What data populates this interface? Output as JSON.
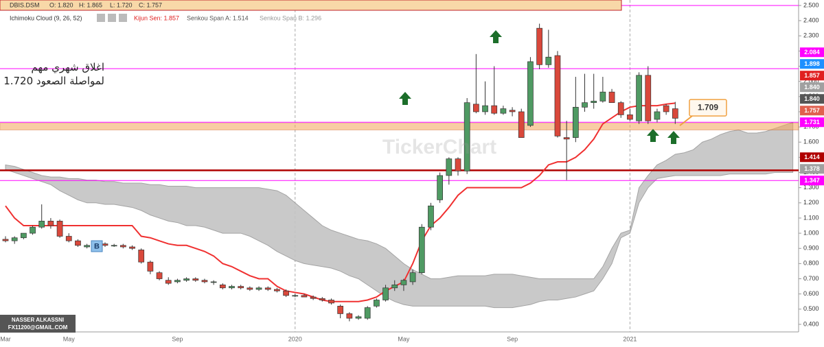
{
  "chart_data": {
    "type": "candlestick",
    "symbol": "DBIS.DSM",
    "ohlc_labels": [
      "O: 1.820",
      "H: 1.865",
      "L: 1.720",
      "C: 1.757"
    ],
    "indicator": "Ichimoku Cloud (9, 26, 52)",
    "indicator_values": [
      {
        "label": "Kijun Sen: 1.857",
        "color": "#e02020"
      },
      {
        "label": "Senkou Span A: 1.514",
        "color": "#555555"
      },
      {
        "label": "Senkou Span B: 1.296",
        "color": "#999999"
      }
    ],
    "categories": [
      "Mar",
      null,
      null,
      null,
      null,
      null,
      null,
      "May",
      null,
      null,
      null,
      null,
      null,
      null,
      null,
      null,
      null,
      null,
      null,
      "Sep",
      null,
      null,
      null,
      null,
      null,
      null,
      null,
      null,
      null,
      null,
      null,
      null,
      "2020",
      null,
      null,
      null,
      null,
      null,
      null,
      null,
      null,
      null,
      null,
      null,
      "May",
      null,
      null,
      null,
      null,
      null,
      null,
      null,
      null,
      null,
      null,
      null,
      "Sep",
      null,
      null,
      null,
      null,
      null,
      null,
      null,
      null,
      null,
      null,
      null,
      null,
      "2021",
      null,
      null,
      null,
      null,
      null,
      null,
      null,
      null,
      null,
      null,
      null,
      null,
      null,
      null,
      null,
      null,
      null,
      null
    ],
    "candles": {
      "up_color": "#4f9a63",
      "down_color": "#d9483b",
      "open": [
        0.96,
        0.95,
        0.97,
        1.0,
        1.04,
        1.08,
        1.08,
        0.98,
        0.95,
        0.91,
        0.92,
        0.93,
        0.92,
        0.92,
        0.91,
        0.89,
        0.81,
        0.74,
        0.69,
        0.68,
        0.69,
        0.7,
        0.69,
        0.68,
        0.66,
        0.64,
        0.65,
        0.64,
        0.63,
        0.64,
        0.63,
        0.62,
        0.59,
        0.59,
        0.58,
        0.57,
        0.56,
        0.52,
        0.47,
        0.44,
        0.44,
        0.52,
        0.56,
        0.64,
        0.66,
        0.68,
        0.74,
        1.04,
        1.22,
        1.38,
        1.49,
        1.41,
        1.85,
        1.8,
        1.84,
        1.79,
        1.81,
        1.8,
        1.71,
        2.35,
        2.11,
        2.17,
        1.63,
        1.63,
        1.83,
        1.86,
        1.87,
        1.93,
        1.86,
        1.78,
        1.74,
        2.04,
        1.75,
        1.84,
        1.82,
        null,
        null,
        null,
        null,
        null,
        null,
        null,
        null,
        null,
        null,
        null,
        null,
        null
      ],
      "high": [
        0.98,
        0.98,
        1.0,
        1.05,
        1.19,
        1.1,
        1.09,
        1.0,
        0.96,
        0.93,
        0.95,
        0.94,
        0.93,
        0.93,
        0.92,
        0.9,
        0.82,
        0.75,
        0.71,
        0.7,
        0.71,
        0.71,
        0.7,
        0.69,
        0.67,
        0.66,
        0.66,
        0.65,
        0.65,
        0.65,
        0.64,
        0.63,
        0.6,
        0.6,
        0.59,
        0.58,
        0.57,
        0.53,
        0.48,
        0.46,
        0.52,
        0.57,
        0.66,
        0.69,
        0.7,
        0.76,
        1.06,
        1.2,
        1.4,
        1.5,
        1.5,
        1.89,
        2.18,
        2.0,
        2.1,
        1.84,
        1.83,
        1.82,
        2.16,
        2.38,
        2.34,
        2.2,
        1.74,
        2.03,
        2.05,
        2.05,
        2.03,
        1.95,
        1.87,
        1.82,
        2.06,
        2.1,
        1.82,
        1.85,
        1.865,
        null,
        null,
        null,
        null,
        null,
        null,
        null,
        null,
        null,
        null,
        null,
        null,
        null
      ],
      "low": [
        0.94,
        0.93,
        0.96,
        0.99,
        1.03,
        1.03,
        0.97,
        0.94,
        0.91,
        0.9,
        0.91,
        0.91,
        0.91,
        0.9,
        0.89,
        0.8,
        0.73,
        0.69,
        0.66,
        0.67,
        0.68,
        0.68,
        0.67,
        0.66,
        0.63,
        0.63,
        0.63,
        0.62,
        0.62,
        0.62,
        0.61,
        0.58,
        0.58,
        0.58,
        0.56,
        0.55,
        0.53,
        0.44,
        0.42,
        0.43,
        0.43,
        0.51,
        0.55,
        0.62,
        0.62,
        0.66,
        0.73,
        1.02,
        1.2,
        1.32,
        1.38,
        1.39,
        1.79,
        1.78,
        1.78,
        1.78,
        1.77,
        1.63,
        1.7,
        2.08,
        2.09,
        1.63,
        1.35,
        1.6,
        1.8,
        1.82,
        1.86,
        1.86,
        1.76,
        1.74,
        1.72,
        1.72,
        1.73,
        1.78,
        1.72,
        null,
        null,
        null,
        null,
        null,
        null,
        null,
        null,
        null,
        null,
        null,
        null,
        null
      ],
      "close": [
        0.95,
        0.97,
        1.0,
        1.04,
        1.08,
        1.05,
        0.98,
        0.95,
        0.92,
        0.92,
        0.93,
        0.92,
        0.92,
        0.91,
        0.9,
        0.81,
        0.75,
        0.7,
        0.67,
        0.69,
        0.7,
        0.69,
        0.68,
        0.68,
        0.64,
        0.65,
        0.64,
        0.63,
        0.64,
        0.63,
        0.62,
        0.59,
        0.59,
        0.58,
        0.57,
        0.56,
        0.54,
        0.47,
        0.44,
        0.45,
        0.51,
        0.56,
        0.64,
        0.66,
        0.69,
        0.74,
        1.04,
        1.18,
        1.38,
        1.49,
        1.41,
        1.86,
        1.8,
        1.84,
        1.79,
        1.82,
        1.8,
        1.63,
        2.13,
        2.11,
        2.16,
        1.64,
        1.62,
        1.83,
        1.86,
        1.87,
        1.93,
        1.86,
        1.78,
        1.75,
        2.04,
        1.74,
        1.8,
        1.8,
        1.757,
        null,
        null,
        null,
        null,
        null,
        null,
        null,
        null,
        null,
        null,
        null,
        null,
        null
      ]
    },
    "kijun": {
      "color": "#f03030",
      "values": [
        1.18,
        1.1,
        1.05,
        1.05,
        1.05,
        1.05,
        1.05,
        1.05,
        1.05,
        1.05,
        1.05,
        1.05,
        1.05,
        1.05,
        1.05,
        0.98,
        0.97,
        0.95,
        0.93,
        0.92,
        0.92,
        0.9,
        0.88,
        0.85,
        0.8,
        0.78,
        0.75,
        0.72,
        0.7,
        0.7,
        0.65,
        0.62,
        0.61,
        0.6,
        0.58,
        0.56,
        0.55,
        0.55,
        0.55,
        0.55,
        0.56,
        0.58,
        0.62,
        0.65,
        0.68,
        0.8,
        0.95,
        1.05,
        1.1,
        1.17,
        1.25,
        1.3,
        1.3,
        1.3,
        1.3,
        1.3,
        1.3,
        1.3,
        1.33,
        1.38,
        1.45,
        1.47,
        1.47,
        1.5,
        1.55,
        1.62,
        1.72,
        1.76,
        1.8,
        1.83,
        1.84,
        1.84,
        1.84,
        1.85,
        1.857,
        null,
        null,
        null,
        null,
        null,
        null,
        null,
        null,
        null,
        null,
        null,
        null,
        null
      ]
    },
    "cloud": {
      "color": "#c4c4c4",
      "edge": "#9a9a9a",
      "span_a": [
        1.45,
        1.44,
        1.42,
        1.4,
        1.38,
        1.37,
        1.37,
        1.36,
        1.36,
        1.35,
        1.35,
        1.34,
        1.34,
        1.33,
        1.33,
        1.33,
        1.32,
        1.32,
        1.31,
        1.31,
        1.31,
        1.3,
        1.3,
        1.3,
        1.3,
        1.3,
        1.3,
        1.3,
        1.3,
        1.29,
        1.28,
        1.25,
        1.2,
        1.15,
        1.1,
        1.05,
        1.02,
        1.0,
        0.98,
        0.96,
        0.95,
        0.93,
        0.9,
        0.85,
        0.8,
        0.76,
        0.73,
        0.7,
        0.7,
        0.71,
        0.72,
        0.72,
        0.72,
        0.72,
        0.73,
        0.73,
        0.73,
        0.72,
        0.71,
        0.7,
        0.7,
        0.7,
        0.7,
        0.7,
        0.7,
        0.7,
        0.78,
        0.9,
        1.0,
        1.02,
        1.3,
        1.38,
        1.45,
        1.48,
        1.52,
        1.53,
        1.55,
        1.6,
        1.62,
        1.65,
        1.67,
        1.68,
        1.66,
        1.66,
        1.67,
        1.69,
        1.71,
        1.73
      ],
      "span_b": [
        1.42,
        1.4,
        1.38,
        1.36,
        1.34,
        1.32,
        1.28,
        1.25,
        1.22,
        1.2,
        1.2,
        1.19,
        1.19,
        1.18,
        1.17,
        1.15,
        1.12,
        1.1,
        1.08,
        1.07,
        1.05,
        1.05,
        1.04,
        1.02,
        1.0,
        1.0,
        1.0,
        0.98,
        0.95,
        0.92,
        0.88,
        0.85,
        0.82,
        0.8,
        0.79,
        0.78,
        0.77,
        0.75,
        0.72,
        0.7,
        0.66,
        0.62,
        0.58,
        0.55,
        0.53,
        0.52,
        0.52,
        0.52,
        0.52,
        0.52,
        0.52,
        0.52,
        0.52,
        0.52,
        0.51,
        0.51,
        0.51,
        0.52,
        0.53,
        0.55,
        0.56,
        0.56,
        0.57,
        0.58,
        0.6,
        0.62,
        0.7,
        0.8,
        0.97,
        1.0,
        1.2,
        1.3,
        1.36,
        1.37,
        1.38,
        1.38,
        1.38,
        1.38,
        1.38,
        1.38,
        1.39,
        1.39,
        1.39,
        1.39,
        1.39,
        1.4,
        1.4,
        1.4
      ]
    },
    "zone": {
      "from": 1.68,
      "to": 1.725,
      "color": "#f5a55a"
    },
    "levels": [
      {
        "value": 2.5,
        "color": "#ff00ff",
        "width": 1
      },
      {
        "value": 2.084,
        "color": "#ff00ff",
        "width": 1
      },
      {
        "value": 1.731,
        "color": "#ff00ff",
        "width": 1
      },
      {
        "value": 1.414,
        "color": "#b00000",
        "width": 2.5
      },
      {
        "value": 1.347,
        "color": "#ff00ff",
        "width": 1
      }
    ],
    "price_tags": [
      {
        "value": 2.084,
        "label": "2.084",
        "color": "#ff00ff"
      },
      {
        "value": 1.898,
        "label": "1.898",
        "color": "#1e90ff"
      },
      {
        "value": 1.857,
        "label": "1.857",
        "color": "#e02020"
      },
      {
        "value": 1.84,
        "label": "1.840",
        "color": "#555555"
      },
      {
        "value": 1.84,
        "label": "1.840",
        "color": "#a0a0a0"
      },
      {
        "value": 1.757,
        "label": "1.757",
        "color": "#e0604f"
      },
      {
        "value": 1.731,
        "label": "1.731",
        "color": "#ff00ff"
      },
      {
        "value": 1.414,
        "label": "1.414",
        "color": "#b00000"
      },
      {
        "value": 1.378,
        "label": "1.378",
        "color": "#a0a0a0"
      },
      {
        "value": 1.347,
        "label": "1.347",
        "color": "#ff00ff"
      }
    ],
    "callout": {
      "value": 1.709,
      "label": "1.709"
    },
    "annotations": [
      "اغلاق شهري مهم",
      "لمواصلة الصعود 1.720"
    ],
    "marker": "B",
    "watermark": "TickerChart",
    "credit": [
      "NASSER ALKASSNI",
      "FX11200@GMAIL.COM"
    ],
    "ylim": [
      0.35,
      2.536
    ],
    "yticks": [
      {
        "value": 0.4,
        "label": "0.400"
      },
      {
        "value": 0.5,
        "label": "0.500"
      },
      {
        "value": 0.6,
        "label": "0.600"
      },
      {
        "value": 0.7,
        "label": "0.700"
      },
      {
        "value": 0.8,
        "label": "0.800"
      },
      {
        "value": 0.9,
        "label": "0.900"
      },
      {
        "value": 1.0,
        "label": "1.000"
      },
      {
        "value": 1.1,
        "label": "1.100"
      },
      {
        "value": 1.2,
        "label": "1.200"
      },
      {
        "value": 1.3,
        "label": "1.300"
      },
      {
        "value": 1.4,
        "label": "1.400"
      },
      {
        "value": 1.5,
        "label": "1.500"
      },
      {
        "value": 1.6,
        "label": "1.600"
      },
      {
        "value": 1.7,
        "label": "1.700"
      },
      {
        "value": 1.8,
        "label": "1.800"
      },
      {
        "value": 1.9,
        "label": "1.900"
      },
      {
        "value": 2.0,
        "label": "2.000"
      },
      {
        "value": 2.1,
        "label": "2.100"
      },
      {
        "value": 2.2,
        "label": "2.200"
      },
      {
        "value": 2.3,
        "label": "2.300"
      },
      {
        "value": 2.4,
        "label": "2.400"
      },
      {
        "value": 2.5,
        "label": "2.500"
      }
    ]
  }
}
